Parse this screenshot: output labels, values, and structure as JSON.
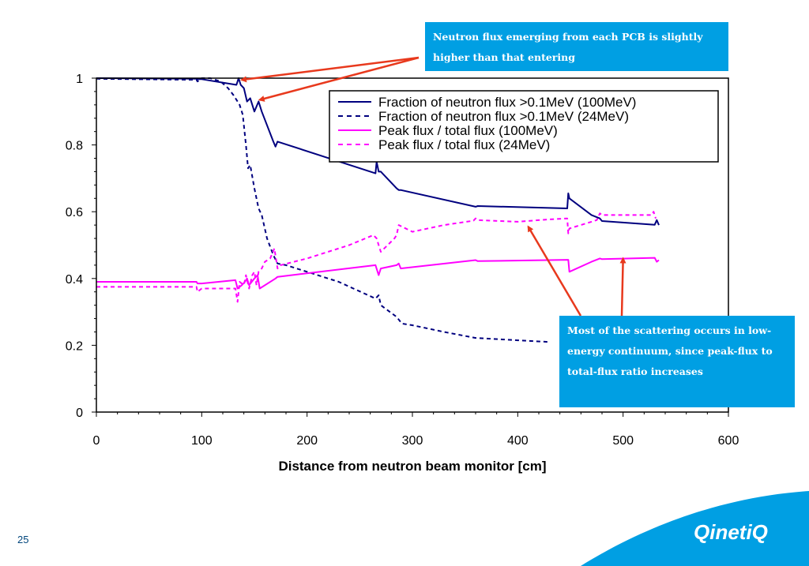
{
  "slide": {
    "page_number": "25",
    "logo_text": "QinetiQ",
    "callout_top": "Neutron flux emerging from each PCB is slightly higher than that entering",
    "callout_bottom": "Most of the scattering occurs in low-energy continuum, since peak-flux to total-flux ratio increases"
  },
  "colors": {
    "navy": "#00007f",
    "magenta": "#ff00ff",
    "callout": "#009fe3",
    "arrow": "#e8391d",
    "logo_blue": "#009fe3"
  },
  "chart_data": {
    "type": "line",
    "title": "",
    "xlabel": "Distance from neutron beam monitor [cm]",
    "ylabel": "",
    "xlim": [
      0,
      600
    ],
    "ylim": [
      0,
      1
    ],
    "xticks": [
      "0",
      "100",
      "200",
      "300",
      "400",
      "500",
      "600"
    ],
    "yticks": [
      "0",
      "0.2",
      "0.4",
      "0.6",
      "0.8",
      "1"
    ],
    "legend_position": "top-right",
    "grid": false,
    "series": [
      {
        "name": "Fraction of neutron flux >0.1MeV (100MeV)",
        "color": "#00007f",
        "dash": "solid",
        "x": [
          0,
          95,
          96,
          100,
          133,
          135,
          137,
          140,
          143,
          146,
          150,
          154,
          157,
          168,
          170,
          172,
          265,
          266,
          268,
          270,
          285,
          287,
          289,
          360,
          362,
          447,
          448,
          449,
          470,
          478,
          480,
          530,
          532,
          534
        ],
        "y": [
          1.0,
          0.998,
          0.997,
          0.997,
          0.98,
          1.0,
          0.98,
          0.97,
          0.93,
          0.94,
          0.9,
          0.93,
          0.9,
          0.81,
          0.795,
          0.81,
          0.715,
          0.75,
          0.72,
          0.72,
          0.67,
          0.665,
          0.665,
          0.615,
          0.617,
          0.61,
          0.655,
          0.64,
          0.59,
          0.58,
          0.572,
          0.561,
          0.575,
          0.56
        ]
      },
      {
        "name": "Fraction of neutron flux >0.1MeV (24MeV)",
        "color": "#00007f",
        "dash": "dashed",
        "x": [
          0,
          95,
          96,
          100,
          108,
          118,
          125,
          130,
          134,
          136,
          139,
          142,
          144,
          146,
          150,
          154,
          157,
          162,
          168,
          172,
          180,
          200,
          230,
          265,
          268,
          270,
          285,
          290,
          300,
          330,
          360,
          400,
          430
        ],
        "y": [
          0.998,
          0.995,
          0.99,
          1.0,
          1.0,
          0.99,
          0.97,
          0.95,
          0.93,
          0.92,
          0.89,
          0.8,
          0.73,
          0.74,
          0.67,
          0.61,
          0.59,
          0.52,
          0.47,
          0.445,
          0.44,
          0.42,
          0.39,
          0.34,
          0.35,
          0.32,
          0.285,
          0.265,
          0.26,
          0.24,
          0.222,
          0.215,
          0.21
        ]
      },
      {
        "name": "Peak flux / total flux (100MeV)",
        "color": "#ff00ff",
        "dash": "solid",
        "x": [
          0,
          95,
          96,
          100,
          132,
          134,
          138,
          141,
          143,
          145,
          150,
          153,
          155,
          170,
          172,
          265,
          268,
          270,
          285,
          287,
          289,
          360,
          362,
          448,
          449,
          470,
          478,
          480,
          530,
          532,
          534
        ],
        "y": [
          0.39,
          0.39,
          0.385,
          0.385,
          0.395,
          0.37,
          0.38,
          0.39,
          0.4,
          0.38,
          0.4,
          0.41,
          0.37,
          0.4,
          0.405,
          0.44,
          0.41,
          0.43,
          0.44,
          0.445,
          0.43,
          0.455,
          0.452,
          0.456,
          0.42,
          0.45,
          0.46,
          0.458,
          0.462,
          0.45,
          0.455
        ]
      },
      {
        "name": "Peak flux / total flux (24MeV)",
        "color": "#ff00ff",
        "dash": "dashed",
        "x": [
          0,
          95,
          96,
          100,
          132,
          134,
          136,
          140,
          142,
          145,
          148,
          150,
          152,
          154,
          157,
          160,
          165,
          169,
          172,
          175,
          200,
          240,
          263,
          266,
          268,
          270,
          283,
          285,
          287,
          300,
          330,
          358,
          360,
          362,
          400,
          430,
          447,
          448,
          449,
          465,
          475,
          478,
          480,
          500,
          527,
          529,
          531
        ],
        "y": [
          0.375,
          0.375,
          0.36,
          0.37,
          0.37,
          0.33,
          0.39,
          0.38,
          0.41,
          0.37,
          0.41,
          0.42,
          0.38,
          0.42,
          0.43,
          0.45,
          0.46,
          0.49,
          0.43,
          0.44,
          0.46,
          0.5,
          0.53,
          0.52,
          0.5,
          0.48,
          0.52,
          0.53,
          0.56,
          0.54,
          0.56,
          0.573,
          0.58,
          0.575,
          0.57,
          0.577,
          0.58,
          0.535,
          0.55,
          0.565,
          0.575,
          0.595,
          0.59,
          0.59,
          0.59,
          0.6,
          0.58
        ]
      }
    ]
  }
}
